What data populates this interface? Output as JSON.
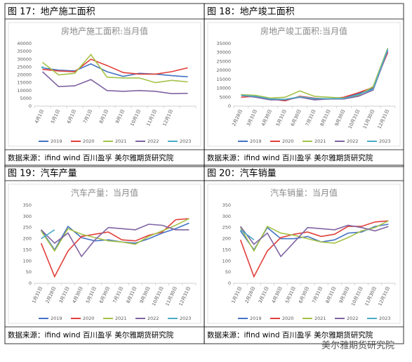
{
  "chart_data": [
    {
      "type": "line",
      "caption": "图 17：地产施工面积",
      "title": "房地产施工面积:当月值",
      "categories": [
        "4月1日",
        "5月1日",
        "6月1日",
        "7月1日",
        "8月1日",
        "9月1日",
        "10月1日",
        "11月1日",
        "12月1日",
        null
      ],
      "series": [
        {
          "name": "2019",
          "color": "#4472c4",
          "values": [
            24500,
            23000,
            22500,
            27000,
            22000,
            19000,
            21000,
            20500,
            19500,
            18800
          ]
        },
        {
          "name": "2020",
          "color": "#e0403a",
          "values": [
            23500,
            22500,
            22000,
            30000,
            26000,
            21500,
            20500,
            20500,
            22000,
            24500
          ]
        },
        {
          "name": "2021",
          "color": "#a5c249",
          "values": [
            28000,
            20000,
            21000,
            33000,
            18500,
            18000,
            18000,
            15000,
            16500,
            15500
          ]
        },
        {
          "name": "2022",
          "color": "#8064a2",
          "values": [
            22000,
            12500,
            13000,
            17000,
            10000,
            9500,
            10000,
            9500,
            8000,
            8200
          ]
        },
        {
          "name": "2023",
          "color": "#4bacc6",
          "values": [
            24800,
            null,
            null,
            null,
            null,
            null,
            null,
            null,
            null,
            null
          ]
        }
      ],
      "ylim": [
        0,
        40000
      ],
      "yticks": [
        0,
        5000,
        10000,
        15000,
        20000,
        25000,
        30000,
        35000,
        40000
      ],
      "source": "数据来源：ifind wind 百川盈孚 美尔雅期货研究院"
    },
    {
      "type": "line",
      "caption": "图 18：地产竣工面积",
      "title": "房地产竣工面积:当月值",
      "categories": [
        "2月28日",
        "3月31日",
        "4月30日",
        "5月31日",
        "6月30日",
        "7月31日",
        "8月31日",
        "9月30日",
        "10月31日",
        "11月30日",
        "12月31日"
      ],
      "series": [
        {
          "name": "2019",
          "color": "#4472c4",
          "values": [
            6000,
            5500,
            4000,
            3500,
            5000,
            4000,
            4000,
            4500,
            7000,
            10000,
            31000
          ]
        },
        {
          "name": "2020",
          "color": "#e0403a",
          "values": [
            5000,
            5500,
            4000,
            3000,
            5500,
            4500,
            4000,
            5000,
            7500,
            10500,
            30000
          ]
        },
        {
          "name": "2021",
          "color": "#a5c249",
          "values": [
            6500,
            6000,
            4500,
            5000,
            8500,
            5500,
            5000,
            4500,
            6000,
            11000,
            32500
          ]
        },
        {
          "name": "2022",
          "color": "#8064a2",
          "values": [
            6000,
            5000,
            3500,
            3500,
            5000,
            3500,
            4000,
            4000,
            5500,
            9000,
            31000
          ]
        },
        {
          "name": "2023",
          "color": "#4bacc6",
          "values": [
            6000,
            5500,
            4000,
            3800,
            5200,
            4300,
            4200,
            4300,
            6500,
            9500,
            32000
          ]
        }
      ],
      "ylim": [
        0,
        35000
      ],
      "yticks": [
        0,
        5000,
        10000,
        15000,
        20000,
        25000,
        30000,
        35000
      ],
      "source": "数据来源：ifind wind 百川盈孚 美尔雅期货研究院"
    },
    {
      "type": "line",
      "caption": "图 19：汽车产量",
      "title": "汽车产量：当月值",
      "categories": [
        "1月31日",
        "2月28日",
        "3月31日",
        "4月30日",
        "5月31日",
        "6月30日",
        "7月31日",
        "8月31日",
        "9月30日",
        "10月31日",
        "11月30日",
        "12月31日"
      ],
      "series": [
        {
          "name": "2019",
          "color": "#4472c4",
          "values": [
            240,
            150,
            255,
            205,
            190,
            195,
            185,
            180,
            200,
            225,
            245,
            270
          ]
        },
        {
          "name": "2020",
          "color": "#e0403a",
          "values": [
            180,
            30,
            145,
            210,
            220,
            230,
            195,
            190,
            215,
            230,
            285,
            290
          ]
        },
        {
          "name": "2021",
          "color": "#a5c249",
          "values": [
            235,
            145,
            245,
            220,
            205,
            190,
            185,
            175,
            210,
            235,
            260,
            290
          ]
        },
        {
          "name": "2022",
          "color": "#8064a2",
          "values": [
            240,
            180,
            225,
            120,
            195,
            250,
            245,
            240,
            265,
            260,
            240,
            240
          ]
        },
        {
          "name": "2023",
          "color": "#4bacc6",
          "values": [
            200,
            240,
            null,
            null,
            null,
            null,
            null,
            null,
            null,
            null,
            null,
            null
          ]
        }
      ],
      "ylim": [
        0,
        350
      ],
      "yticks": [
        0,
        50,
        100,
        150,
        200,
        250,
        300,
        350
      ],
      "source": "数据来源：ifind wind 百川盈孚 美尔雅期货研究院"
    },
    {
      "type": "line",
      "caption": "图 20：汽车销量",
      "title": "汽车销量：当月值",
      "categories": [
        "1月31日",
        "2月28日",
        "3月31日",
        "4月30日",
        "5月31日",
        "6月30日",
        "7月31日",
        "8月31日",
        "9月30日",
        "10月31日",
        "11月30日",
        "12月31日"
      ],
      "series": [
        {
          "name": "2019",
          "color": "#4472c4",
          "values": [
            235,
            150,
            250,
            200,
            200,
            210,
            185,
            195,
            225,
            230,
            255,
            265
          ]
        },
        {
          "name": "2020",
          "color": "#e0403a",
          "values": [
            195,
            30,
            145,
            205,
            220,
            230,
            210,
            220,
            255,
            255,
            275,
            280
          ]
        },
        {
          "name": "2021",
          "color": "#a5c249",
          "values": [
            250,
            145,
            255,
            225,
            215,
            200,
            185,
            180,
            205,
            235,
            250,
            280
          ]
        },
        {
          "name": "2022",
          "color": "#8064a2",
          "values": [
            255,
            175,
            225,
            120,
            185,
            250,
            245,
            240,
            260,
            250,
            235,
            255
          ]
        },
        {
          "name": "2023",
          "color": "#4bacc6",
          "values": [
            240,
            195,
            null,
            null,
            null,
            null,
            null,
            null,
            null,
            null,
            null,
            null
          ]
        }
      ],
      "ylim": [
        0,
        350
      ],
      "yticks": [
        0,
        50,
        100,
        150,
        200,
        250,
        300,
        350
      ],
      "source": "数据来源：ifind wind 百川盈孚 美尔雅期货研究院"
    }
  ],
  "watermark": "美尔雅期货研究院"
}
